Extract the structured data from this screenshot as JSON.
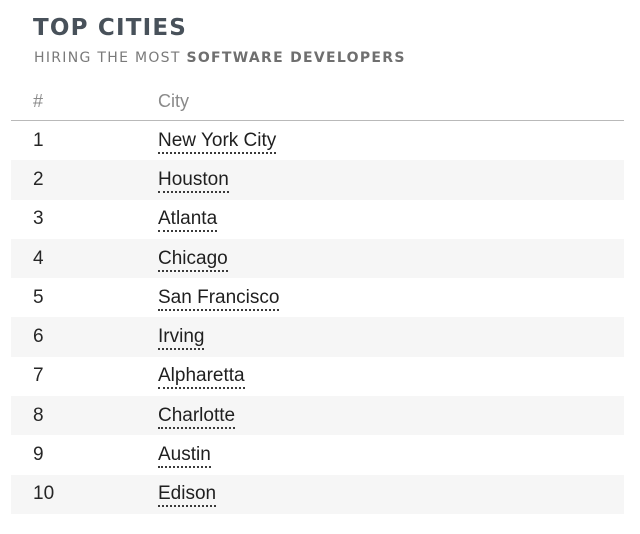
{
  "header": {
    "title": "TOP CITIES",
    "subtitle_prefix": "HIRING THE MOST ",
    "subtitle_emphasis": "SOFTWARE DEVELOPERS"
  },
  "table": {
    "columns": [
      "#",
      "City"
    ],
    "rows": [
      {
        "rank": "1",
        "city": "New York City"
      },
      {
        "rank": "2",
        "city": "Houston"
      },
      {
        "rank": "3",
        "city": "Atlanta"
      },
      {
        "rank": "4",
        "city": "Chicago"
      },
      {
        "rank": "5",
        "city": "San Francisco"
      },
      {
        "rank": "6",
        "city": "Irving"
      },
      {
        "rank": "7",
        "city": "Alpharetta"
      },
      {
        "rank": "8",
        "city": "Charlotte"
      },
      {
        "rank": "9",
        "city": "Austin"
      },
      {
        "rank": "10",
        "city": "Edison"
      }
    ]
  }
}
